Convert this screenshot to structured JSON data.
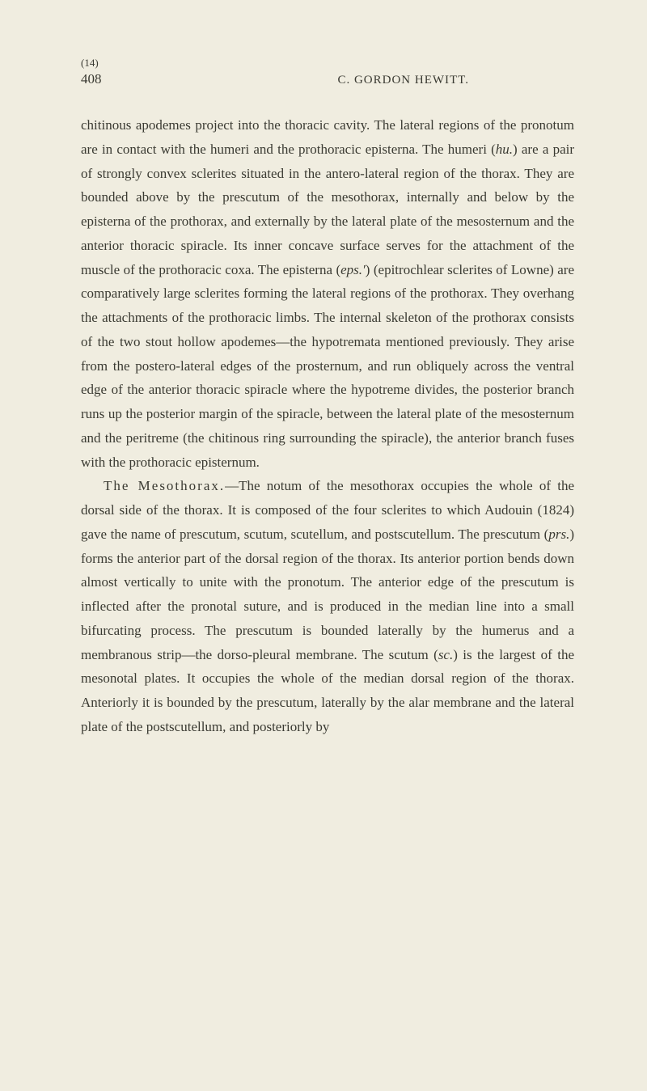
{
  "header": {
    "marker": "(14)",
    "pageNumber": "408",
    "authorName": "C. GORDON HEWITT."
  },
  "paragraphs": {
    "p1": {
      "text": "chitinous apodemes project into the thoracic cavity. The lateral regions of the pronotum are in contact with the humeri and the prothoracic episterna. The humeri (",
      "italic1": "hu.",
      "text2": ") are a pair of strongly convex sclerites situated in the antero-lateral region of the thorax. They are bounded above by the prescutum of the mesothorax, internally and below by the episterna of the prothorax, and externally by the lateral plate of the mesosternum and the anterior thoracic spiracle. Its inner concave surface serves for the attachment of the muscle of the prothoracic coxa. The episterna (",
      "italic2": "eps.′",
      "text3": ") (epitrochlear sclerites of Lowne) are comparatively large sclerites forming the lateral regions of the prothorax. They overhang the attachments of the prothoracic limbs. The internal skeleton of the prothorax consists of the two stout hollow apodemes—the hypotremata mentioned previously. They arise from the postero-lateral edges of the prosternum, and run obliquely across the ventral edge of the anterior thoracic spiracle where the hypotreme divides, the posterior branch runs up the posterior margin of the spiracle, between the lateral plate of the mesosternum and the peritreme (the chitinous ring surrounding the spiracle), the anterior branch fuses with the prothoracic episternum."
    },
    "p2": {
      "spaced1": "The Mesothorax.",
      "text1": "—The notum of the mesothorax occupies the whole of the dorsal side of the thorax. It is composed of the four sclerites to which Audouin (1824) gave the name of prescutum, scutum, scutellum, and postscutellum. The prescutum (",
      "italic1": "prs.",
      "text2": ") forms the anterior part of the dorsal region of the thorax. Its anterior portion bends down almost vertically to unite with the pronotum. The anterior edge of the prescutum is inflected after the pronotal suture, and is produced in the median line into a small bifurcating process. The prescutum is bounded laterally by the humerus and a membranous strip—the dorso-pleural membrane. The scutum (",
      "italic2": "sc.",
      "text3": ") is the largest of the mesonotal plates. It occupies the whole of the median dorsal region of the thorax. Anteriorly it is bounded by the prescutum, laterally by the alar membrane and the lateral plate of the postscutellum, and posteriorly by"
    }
  },
  "styling": {
    "backgroundColor": "#f0ede0",
    "textColor": "#3a3a32",
    "bodyFontSize": 17,
    "lineHeight": 1.75,
    "headerFontSize": 15,
    "pageNumberFontSize": 17,
    "markerFontSize": 13,
    "fontFamily": "Georgia, Times New Roman, serif"
  }
}
